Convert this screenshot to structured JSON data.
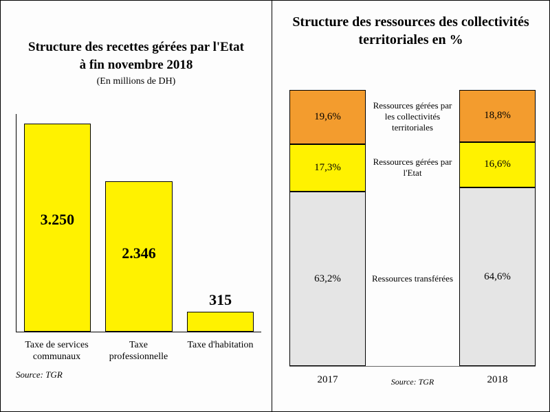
{
  "left_chart": {
    "type": "bar",
    "title_line1": "Structure des recettes gérées par l'Etat",
    "title_line2": "à fin novembre 2018",
    "title_fontsize": 19,
    "subtitle": "(En millions de DH)",
    "categories": [
      "Taxe de services communaux",
      "Taxe professionnelle",
      "Taxe d'habitation"
    ],
    "values": [
      3250,
      2346,
      315
    ],
    "value_labels": [
      "3.250",
      "2.346",
      "315"
    ],
    "bar_color": "#fff200",
    "value_fontsize": 22,
    "max_value": 3400,
    "background_color": "#fdfdfd",
    "axis_color": "#000000",
    "source_label": "Source: TGR"
  },
  "right_chart": {
    "type": "stacked_bar_pct",
    "title_line1": "Structure des ressources des collectivités",
    "title_line2": "territoriales en %",
    "title_fontsize": 20,
    "years": [
      "2017",
      "2018"
    ],
    "series": [
      {
        "key": "collect",
        "label": "Ressources gérées par les collectivités territoriales",
        "color": "#f39c2e",
        "values": [
          19.6,
          18.8
        ],
        "labels": [
          "19,6%",
          "18,8%"
        ]
      },
      {
        "key": "etat",
        "label": "Ressources gérées par l'Etat",
        "color": "#fff200",
        "values": [
          17.3,
          16.6
        ],
        "labels": [
          "17,3%",
          "16,6%"
        ]
      },
      {
        "key": "transf",
        "label": "Ressources transférées",
        "color": "#e5e5e5",
        "values": [
          63.2,
          64.6
        ],
        "labels": [
          "63,2%",
          "64,6%"
        ]
      }
    ],
    "segment_border": "#000000",
    "source_label": "Source: TGR"
  }
}
